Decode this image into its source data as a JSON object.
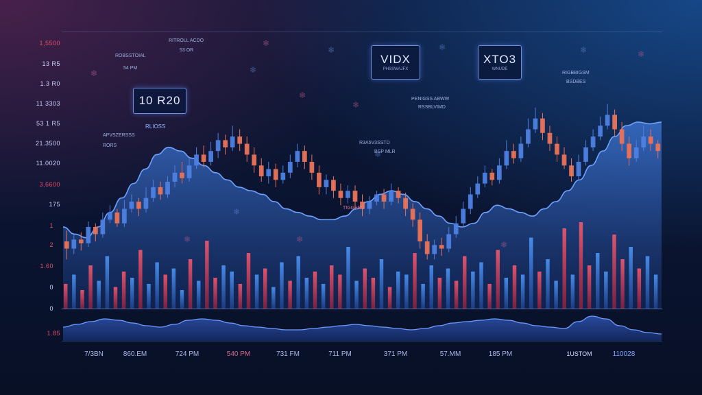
{
  "y_axis_labels": [
    {
      "text": "1,5500",
      "red": true
    },
    {
      "text": "13 R5",
      "red": false
    },
    {
      "text": "1.3 R0",
      "red": false
    },
    {
      "text": "11 3303",
      "red": false
    },
    {
      "text": "53 1 R5",
      "red": false
    },
    {
      "text": "21.3500",
      "red": false
    },
    {
      "text": "11.0020",
      "red": false
    },
    {
      "text": "3,6600",
      "red": true
    },
    {
      "text": "175",
      "red": false
    },
    {
      "text": "1",
      "red": true
    },
    {
      "text": "2",
      "red": true
    },
    {
      "text": "1.60",
      "red": true
    },
    {
      "text": "0",
      "red": false
    },
    {
      "text": "0",
      "red": false
    },
    {
      "text": "1.85",
      "red": true
    }
  ],
  "x_axis_labels": [
    {
      "text": "7/3BN",
      "red": false
    },
    {
      "text": "860.EM",
      "red": false
    },
    {
      "text": "724 PM",
      "red": false
    },
    {
      "text": "540 PM",
      "red": true
    },
    {
      "text": "731 FM",
      "red": false
    },
    {
      "text": "711 PM",
      "red": false
    },
    {
      "text": "371 PM",
      "red": false
    },
    {
      "text": "57.MM",
      "red": false
    },
    {
      "text": "185 PM",
      "red": false
    },
    {
      "text": "1USTOM",
      "red": false
    },
    {
      "text": "110028",
      "red": false
    }
  ],
  "tags": [
    {
      "title": "10 R20",
      "subtitle": ""
    },
    {
      "title": "VIDX",
      "subtitle": "PHSSWAJFX"
    },
    {
      "title": "XTO3",
      "subtitle": "WNUDE"
    }
  ],
  "annotations": [
    {
      "text": "ROBSSTOIAL",
      "red": false
    },
    {
      "text": "54 PM",
      "red": false
    },
    {
      "text": "RITROLL ACDO",
      "red": false
    },
    {
      "text": "53 OR",
      "red": false
    },
    {
      "text": "PENIGSS ABWW",
      "red": false
    },
    {
      "text": "RSSBLVIMD",
      "red": false
    },
    {
      "text": "R3A5V3SSTD",
      "red": false
    },
    {
      "text": "BSP MLR",
      "red": false
    },
    {
      "text": "RIGBBIGSM",
      "red": false
    },
    {
      "text": "BSDBES",
      "red": false
    },
    {
      "text": "APVSZERSSS",
      "red": false
    },
    {
      "text": "RORS",
      "red": false
    },
    {
      "text": "RLIOSS",
      "red": false
    },
    {
      "text": "TIGGERS",
      "red": true
    }
  ],
  "colors": {
    "bull": "#4d7fe0",
    "bear": "#e8735a",
    "volume_red": "#e04a5e",
    "volume_blue": "#3f8ae0",
    "area_top": "#3a6fc9",
    "area_line": "#6fa3ff"
  },
  "chart_data": {
    "type": "line",
    "candles": [
      [
        62,
        58,
        68,
        52
      ],
      [
        58,
        63,
        66,
        55
      ],
      [
        63,
        61,
        67,
        57
      ],
      [
        61,
        70,
        73,
        59
      ],
      [
        70,
        66,
        72,
        62
      ],
      [
        66,
        74,
        78,
        64
      ],
      [
        74,
        78,
        82,
        72
      ],
      [
        78,
        72,
        80,
        70
      ],
      [
        72,
        80,
        85,
        70
      ],
      [
        80,
        84,
        88,
        78
      ],
      [
        84,
        80,
        86,
        76
      ],
      [
        80,
        86,
        92,
        78
      ],
      [
        86,
        92,
        96,
        84
      ],
      [
        92,
        88,
        95,
        85
      ],
      [
        88,
        95,
        98,
        86
      ],
      [
        95,
        100,
        104,
        92
      ],
      [
        100,
        97,
        106,
        94
      ],
      [
        97,
        104,
        108,
        95
      ],
      [
        104,
        110,
        114,
        102
      ],
      [
        110,
        106,
        115,
        103
      ],
      [
        106,
        112,
        117,
        104
      ],
      [
        112,
        118,
        122,
        108
      ],
      [
        118,
        114,
        121,
        110
      ],
      [
        114,
        120,
        126,
        112
      ],
      [
        120,
        116,
        124,
        112
      ],
      [
        116,
        110,
        120,
        106
      ],
      [
        110,
        104,
        114,
        100
      ],
      [
        104,
        98,
        108,
        95
      ],
      [
        98,
        102,
        106,
        94
      ],
      [
        102,
        96,
        105,
        92
      ],
      [
        96,
        100,
        104,
        94
      ],
      [
        100,
        106,
        110,
        97
      ],
      [
        106,
        112,
        116,
        103
      ],
      [
        112,
        106,
        115,
        102
      ],
      [
        106,
        100,
        110,
        96
      ],
      [
        100,
        92,
        104,
        88
      ],
      [
        92,
        96,
        99,
        88
      ],
      [
        96,
        90,
        98,
        86
      ],
      [
        90,
        86,
        94,
        82
      ],
      [
        86,
        90,
        93,
        83
      ],
      [
        90,
        84,
        93,
        80
      ],
      [
        84,
        80,
        88,
        76
      ],
      [
        80,
        84,
        87,
        77
      ],
      [
        84,
        88,
        90,
        82
      ],
      [
        88,
        84,
        91,
        80
      ],
      [
        84,
        90,
        94,
        82
      ],
      [
        90,
        86,
        92,
        83
      ],
      [
        86,
        80,
        89,
        76
      ],
      [
        80,
        74,
        83,
        70
      ],
      [
        74,
        62,
        78,
        58
      ],
      [
        62,
        55,
        66,
        52
      ],
      [
        55,
        60,
        63,
        52
      ],
      [
        60,
        58,
        64,
        54
      ],
      [
        58,
        66,
        70,
        56
      ],
      [
        66,
        72,
        76,
        64
      ],
      [
        72,
        80,
        84,
        70
      ],
      [
        80,
        88,
        92,
        77
      ],
      [
        88,
        94,
        98,
        86
      ],
      [
        94,
        100,
        104,
        92
      ],
      [
        100,
        96,
        102,
        93
      ],
      [
        96,
        104,
        108,
        94
      ],
      [
        104,
        112,
        118,
        102
      ],
      [
        112,
        108,
        116,
        105
      ],
      [
        108,
        116,
        120,
        106
      ],
      [
        116,
        124,
        130,
        114
      ],
      [
        124,
        130,
        136,
        122
      ],
      [
        130,
        122,
        133,
        118
      ],
      [
        122,
        116,
        126,
        112
      ],
      [
        116,
        110,
        120,
        106
      ],
      [
        110,
        104,
        114,
        102
      ],
      [
        104,
        98,
        108,
        95
      ],
      [
        98,
        106,
        110,
        96
      ],
      [
        106,
        114,
        118,
        104
      ],
      [
        114,
        120,
        124,
        112
      ],
      [
        120,
        126,
        131,
        118
      ],
      [
        126,
        132,
        138,
        124
      ],
      [
        132,
        124,
        135,
        120
      ],
      [
        124,
        116,
        128,
        112
      ],
      [
        116,
        108,
        120,
        104
      ],
      [
        108,
        114,
        118,
        106
      ],
      [
        114,
        120,
        126,
        112
      ],
      [
        120,
        116,
        124,
        112
      ],
      [
        116,
        112,
        118,
        108
      ]
    ],
    "area": [
      70,
      66,
      64,
      70,
      78,
      86,
      94,
      102,
      110,
      114,
      112,
      108,
      104,
      100,
      96,
      92,
      90,
      88,
      84,
      80,
      78,
      76,
      74,
      74,
      76,
      80,
      84,
      88,
      90,
      88,
      84,
      80,
      76,
      72,
      70,
      72,
      78,
      82,
      80,
      78,
      76,
      80,
      84,
      90,
      96,
      104,
      112,
      120,
      126,
      128,
      127,
      128
    ],
    "volume": [
      40,
      55,
      30,
      70,
      45,
      85,
      35,
      60,
      50,
      95,
      40,
      75,
      55,
      65,
      30,
      80,
      45,
      110,
      50,
      70,
      60,
      40,
      90,
      55,
      65,
      35,
      75,
      45,
      85,
      50,
      60,
      40,
      70,
      55,
      100,
      45,
      65,
      50,
      80,
      35,
      60,
      55,
      90,
      40,
      70,
      50,
      65,
      45,
      85,
      60,
      75,
      40,
      95,
      50,
      70,
      55,
      115,
      60,
      80,
      45,
      130,
      55,
      140,
      70,
      90,
      60,
      120,
      80,
      100,
      65,
      85,
      55
    ],
    "lower_area": [
      20,
      24,
      28,
      32,
      30,
      26,
      22,
      20,
      24,
      30,
      32,
      30,
      26,
      22,
      20,
      18,
      16,
      16,
      18,
      20,
      22,
      24,
      22,
      20,
      18,
      16,
      18,
      22,
      26,
      28,
      30,
      32,
      30,
      26,
      22,
      20,
      18,
      28,
      36,
      32,
      22,
      16,
      12,
      10
    ],
    "ylim": [
      40,
      150
    ]
  }
}
